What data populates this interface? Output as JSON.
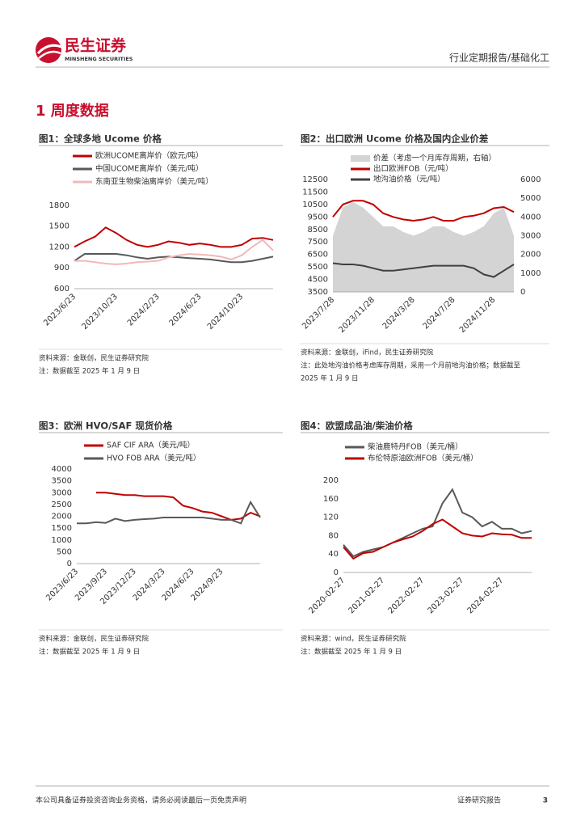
{
  "header": {
    "brand": "民生证券",
    "brand_en": "MINSHENG SECURITIES",
    "report_type": "行业定期报告/基础化工"
  },
  "section_title": "1 周度数据",
  "figures": [
    {
      "chart_data": {
        "type": "line",
        "title": "图1：全球多地 Ucome 价格",
        "categories": [
          "2023/6/23",
          null,
          null,
          null,
          "2023/10/23",
          null,
          null,
          null,
          "2024/2/23",
          null,
          null,
          null,
          "2024/6/23",
          null,
          null,
          null,
          "2024/10/23",
          null,
          null,
          null
        ],
        "ylim": [
          600,
          2100
        ],
        "yticks": [
          600,
          900,
          1200,
          1500,
          1800
        ],
        "series": [
          {
            "name": "欧洲UCOME离岸价（欧元/吨）",
            "color": "#c00000",
            "values": [
              1200,
              1280,
              1350,
              1480,
              1400,
              1300,
              1230,
              1200,
              1230,
              1280,
              1260,
              1230,
              1250,
              1230,
              1200,
              1200,
              1230,
              1320,
              1330,
              1300
            ]
          },
          {
            "name": "中国UCOME离岸价（美元/吨）",
            "color": "#595959",
            "values": [
              1000,
              1100,
              1100,
              1100,
              1100,
              1080,
              1050,
              1030,
              1050,
              1060,
              1050,
              1040,
              1030,
              1020,
              1000,
              980,
              980,
              1000,
              1030,
              1060
            ]
          },
          {
            "name": "东南亚生物柴油离岸价（美元/吨）",
            "color": "#f2b8b8",
            "values": [
              1000,
              1000,
              980,
              960,
              950,
              960,
              980,
              990,
              1000,
              1050,
              1080,
              1100,
              1090,
              1080,
              1060,
              1020,
              1080,
              1200,
              1300,
              1150
            ]
          }
        ]
      },
      "notes": [
        "资料来源：金联创，民生证券研究院",
        "注：数据截至 2025 年 1 月 9 日"
      ]
    },
    {
      "chart_data": {
        "type": "line",
        "title": "图2：出口欧洲 Ucome 价格及国内企业价差",
        "categories": [
          "2023/7/28",
          null,
          null,
          null,
          "2023/11/28",
          null,
          null,
          null,
          "2024/3/28",
          null,
          null,
          null,
          "2024/7/28",
          null,
          null,
          null,
          "2024/11/28",
          null,
          null
        ],
        "ylim": [
          3500,
          12500
        ],
        "yticks": [
          3500,
          4500,
          5500,
          6500,
          7500,
          8500,
          9500,
          10500,
          11500,
          12500
        ],
        "y2lim": [
          0,
          6000
        ],
        "y2ticks": [
          0,
          1000,
          2000,
          3000,
          4000,
          5000,
          6000
        ],
        "series": [
          {
            "name": "价差（考虑一个月库存周期，右轴）",
            "color": "#d4d4d4",
            "axis": "y2",
            "kind": "area",
            "values": [
              3000,
              4500,
              4800,
              4500,
              4000,
              3500,
              3500,
              3200,
              3000,
              3200,
              3500,
              3500,
              3200,
              3000,
              3200,
              3500,
              4200,
              4500,
              3000
            ]
          },
          {
            "name": "出口欧洲FOB（元/吨）",
            "color": "#c00000",
            "values": [
              9500,
              10500,
              10800,
              10800,
              10500,
              9800,
              9500,
              9300,
              9200,
              9300,
              9500,
              9200,
              9200,
              9500,
              9600,
              9800,
              10200,
              10300,
              9900
            ]
          },
          {
            "name": "地沟油价格（元/吨）",
            "color": "#404040",
            "values": [
              5800,
              5700,
              5700,
              5600,
              5400,
              5200,
              5200,
              5300,
              5400,
              5500,
              5600,
              5600,
              5600,
              5600,
              5400,
              4900,
              4700,
              5200,
              5700
            ]
          }
        ]
      },
      "notes": [
        "资料来源：金联创，iFind，民生证券研究院",
        "注：此处地沟油价格考虑库存周期，采用一个月前地沟油价格；数据截至",
        "2025 年 1 月 9 日"
      ]
    },
    {
      "chart_data": {
        "type": "line",
        "title": "图3：欧洲 HVO/SAF 现货价格",
        "categories": [
          "2023/6/23",
          null,
          null,
          "2023/9/23",
          null,
          null,
          "2023/12/23",
          null,
          null,
          "2024/3/23",
          null,
          null,
          "2024/6/23",
          null,
          null,
          "2024/9/23",
          null,
          null,
          null,
          null
        ],
        "ylim": [
          0,
          4000
        ],
        "yticks": [
          0,
          500,
          1000,
          1500,
          2000,
          2500,
          3000,
          3500,
          4000
        ],
        "series": [
          {
            "name": "SAF CIF ARA（美元/吨）",
            "color": "#c00000",
            "values": [
              null,
              null,
              3000,
              3000,
              2950,
              2900,
              2900,
              2850,
              2850,
              2850,
              2800,
              2450,
              2350,
              2200,
              2150,
              2000,
              1850,
              1900,
              2150,
              2000
            ]
          },
          {
            "name": "HVO FOB ARA（美元/吨）",
            "color": "#595959",
            "values": [
              1700,
              1700,
              1750,
              1720,
              1900,
              1800,
              1850,
              1880,
              1900,
              1950,
              1950,
              1950,
              1950,
              1950,
              1900,
              1850,
              1850,
              1700,
              2600,
              1950
            ]
          }
        ]
      },
      "notes": [
        "资料来源：金联创，民生证券研究院",
        "注：数据截至 2025 年 1 月 9 日"
      ]
    },
    {
      "chart_data": {
        "type": "line",
        "title": "图4：欧盟成品油/柴油价格",
        "categories": [
          "2020-02-27",
          null,
          null,
          null,
          "2021-02-27",
          null,
          null,
          null,
          "2022-02-27",
          null,
          null,
          null,
          "2023-02-27",
          null,
          null,
          null,
          "2024-02-27",
          null,
          null,
          null
        ],
        "ylim": [
          0,
          200
        ],
        "yticks": [
          0,
          40,
          80,
          120,
          160,
          200
        ],
        "series": [
          {
            "name": "柴油鹿特丹FOB（美元/桶）",
            "color": "#595959",
            "values": [
              60,
              35,
              45,
              50,
              55,
              65,
              75,
              85,
              95,
              100,
              150,
              180,
              130,
              120,
              100,
              110,
              95,
              95,
              85,
              90
            ]
          },
          {
            "name": "布伦特原油欧洲FOB（美元/桶）",
            "color": "#c00000",
            "values": [
              55,
              30,
              42,
              45,
              55,
              65,
              72,
              78,
              90,
              105,
              115,
              100,
              85,
              80,
              78,
              85,
              83,
              82,
              75,
              75
            ]
          }
        ]
      },
      "notes": [
        "资料来源：wind，民生证券研究院",
        "注：数据截至 2025 年 1 月 9 日"
      ]
    }
  ],
  "footer": {
    "disclaimer": "本公司具备证券投资咨询业务资格，请务必阅读最后一页免责声明",
    "doc_type": "证券研究报告",
    "page": 3
  }
}
